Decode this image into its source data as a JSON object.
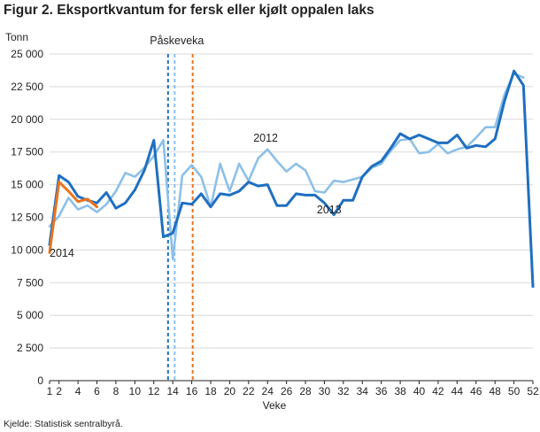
{
  "title": "Figur 2. Eksportkvantum for fersk eller kjølt oppalen laks",
  "source": "Kjelde: Statistisk sentralbyrå.",
  "chart_data": {
    "type": "line",
    "ylabel": "Tonn",
    "xlabel": "Veke",
    "xlim": [
      1,
      52
    ],
    "ylim": [
      0,
      25000
    ],
    "x_ticks": [
      1,
      2,
      4,
      6,
      8,
      10,
      12,
      14,
      16,
      18,
      20,
      22,
      24,
      26,
      28,
      30,
      32,
      34,
      36,
      38,
      40,
      42,
      44,
      46,
      48,
      50,
      52
    ],
    "y_ticks": [
      0,
      2500,
      5000,
      7500,
      10000,
      12500,
      15000,
      17500,
      20000,
      22500,
      25000
    ],
    "y_tick_labels": [
      "0",
      "2 500",
      "5 000",
      "7 500",
      "10 000",
      "12 500",
      "15 000",
      "17 500",
      "20 000",
      "22 500",
      "25 000"
    ],
    "grid": "horizontal",
    "series": [
      {
        "name": "2012",
        "color": "#8cc0e8",
        "x": [
          1,
          2,
          3,
          4,
          5,
          6,
          7,
          8,
          9,
          10,
          11,
          12,
          13,
          14,
          15,
          16,
          17,
          18,
          19,
          20,
          21,
          22,
          23,
          24,
          25,
          26,
          27,
          28,
          29,
          30,
          31,
          32,
          33,
          34,
          35,
          36,
          37,
          38,
          39,
          40,
          41,
          42,
          43,
          44,
          45,
          46,
          47,
          48,
          49,
          50,
          51
        ],
        "values": [
          11800,
          12600,
          14000,
          13100,
          13400,
          12900,
          13500,
          14500,
          15900,
          15600,
          16300,
          17200,
          18400,
          9300,
          15700,
          16500,
          15600,
          13300,
          16600,
          14500,
          16600,
          15300,
          17000,
          17700,
          16800,
          16000,
          16600,
          16100,
          14500,
          14400,
          15300,
          15200,
          15400,
          15600,
          16300,
          16600,
          17600,
          18400,
          18500,
          17400,
          17500,
          18100,
          17400,
          17700,
          17900,
          18600,
          19400,
          19400,
          21900,
          23500,
          23200
        ]
      },
      {
        "name": "2013",
        "color": "#1f6fc0",
        "x": [
          1,
          2,
          3,
          4,
          5,
          6,
          7,
          8,
          9,
          10,
          11,
          12,
          13,
          14,
          15,
          16,
          17,
          18,
          19,
          20,
          21,
          22,
          23,
          24,
          25,
          26,
          27,
          28,
          29,
          30,
          31,
          32,
          33,
          34,
          35,
          36,
          37,
          38,
          39,
          40,
          41,
          42,
          43,
          44,
          45,
          46,
          47,
          48,
          49,
          50,
          51,
          52
        ],
        "values": [
          10400,
          15700,
          15200,
          14100,
          13800,
          13600,
          14400,
          13200,
          13600,
          14600,
          16100,
          18400,
          11000,
          11300,
          13600,
          13500,
          14300,
          13300,
          14300,
          14200,
          14500,
          15200,
          14900,
          15000,
          13400,
          13400,
          14300,
          14200,
          14200,
          13600,
          12700,
          13800,
          13800,
          15600,
          16400,
          16800,
          17800,
          18900,
          18500,
          18800,
          18500,
          18200,
          18200,
          18800,
          17800,
          18000,
          17900,
          18500,
          21400,
          23700,
          22600,
          7200
        ]
      },
      {
        "name": "2014",
        "color": "#e8741e",
        "x": [
          1,
          2,
          3,
          4,
          5,
          6
        ],
        "values": [
          9800,
          15200,
          14500,
          13700,
          13900,
          13300
        ]
      }
    ],
    "markers": [
      {
        "label": "Påskeveka",
        "x": 13.5,
        "color": "#1f6fc0",
        "style": "dashed"
      },
      {
        "label": "",
        "x": 14.2,
        "color": "#8cc0e8",
        "style": "dashed"
      },
      {
        "label": "",
        "x": 16.1,
        "color": "#e8741e",
        "style": "dashed"
      }
    ],
    "annotations": [
      {
        "text": "2012",
        "x": 23.8,
        "y": 18300
      },
      {
        "text": "2013",
        "x": 30.5,
        "y": 12800
      },
      {
        "text": "2014",
        "x": 2.3,
        "y": 9500
      }
    ]
  }
}
